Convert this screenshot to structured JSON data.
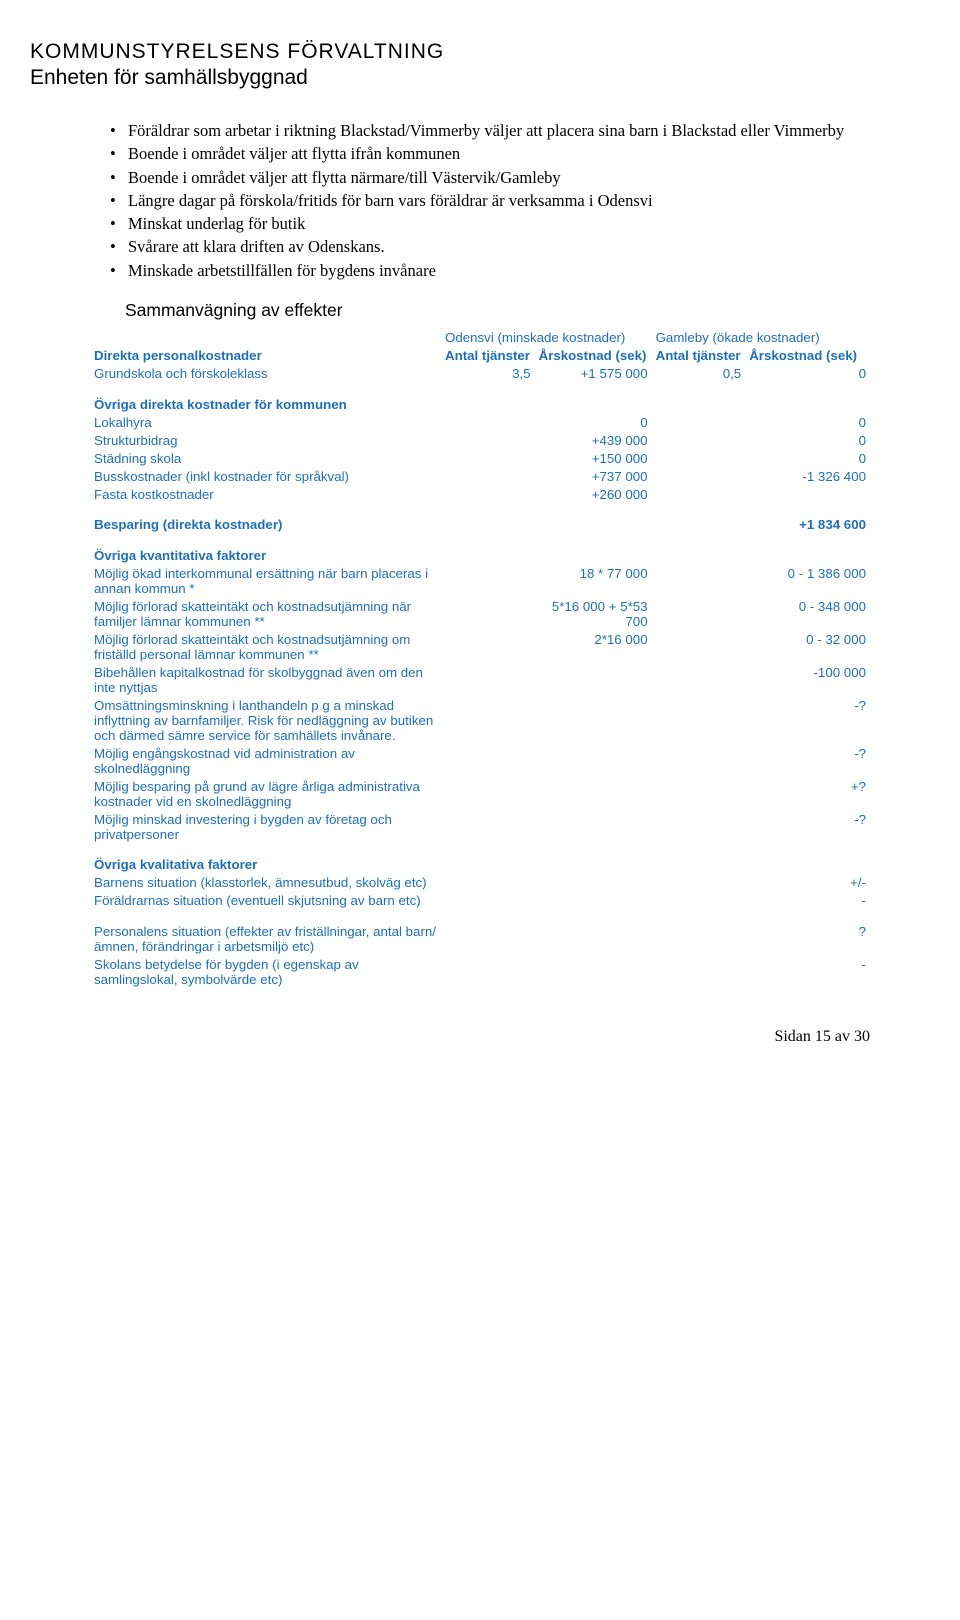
{
  "header": {
    "title": "KOMMUNSTYRELSENS FÖRVALTNING",
    "subtitle": "Enheten för samhällsbyggnad"
  },
  "bullets": [
    "Föräldrar som arbetar i riktning Blackstad/Vimmerby väljer att placera sina barn i Blackstad eller Vimmerby",
    "Boende i området väljer att flytta ifrån kommunen",
    "Boende i området väljer att flytta närmare/till Västervik/Gamleby",
    "Längre dagar på förskola/fritids för barn vars föräldrar är verksamma i Odensvi",
    "Minskat underlag för butik",
    "Svårare att klara driften av Odenskans.",
    "Minskade arbetstillfällen för bygdens invånare"
  ],
  "section_heading": "Sammanvägning av effekter",
  "table": {
    "col_headers": {
      "group_a": "Odensvi (minskade kostnader)",
      "group_b": "Gamleby (ökade kostnader)"
    },
    "sub_headers": {
      "direct_personal": "Direkta personalkostnader",
      "antal": "Antal tjänster",
      "ars": "Årskostnad (sek)"
    },
    "rows": {
      "grundskola": {
        "label": "Grundskola och förskoleklass",
        "a1": "3,5",
        "a2": "+1 575 000",
        "b1": "0,5",
        "b2": "0"
      },
      "ovriga_direkta_header": "Övriga direkta kostnader för kommunen",
      "lokalhyra": {
        "label": "Lokalhyra",
        "a2": "0",
        "b2": "0"
      },
      "strukturbidrag": {
        "label": "Strukturbidrag",
        "a2": "+439 000",
        "b2": "0"
      },
      "stadning": {
        "label": "Städning skola",
        "a2": "+150 000",
        "b2": "0"
      },
      "buss": {
        "label": "Busskostnader (inkl kostnader för språkval)",
        "a2": "+737 000",
        "b2": "-1 326 400"
      },
      "fasta": {
        "label": "Fasta kostkostnader",
        "a2": "+260 000",
        "b2": ""
      },
      "besparing": {
        "label": "Besparing (direkta kostnader)",
        "b2": "+1 834 600"
      },
      "ovriga_kvant_header": "Övriga kvantitativa faktorer",
      "interkommunal": {
        "label": "Möjlig ökad interkommunal ersättning när barn placeras i annan kommun *",
        "a2": "18 * 77 000",
        "b2": "0 - 1 386 000"
      },
      "skatteintakt1": {
        "label": "Möjlig förlorad skatteintäkt och kostnadsutjämning när familjer lämnar kommunen **",
        "a2": "5*16 000 + 5*53 700",
        "b2": "0 - 348 000"
      },
      "skatteintakt2": {
        "label": "Möjlig förlorad skatteintäkt och kostnadsutjämning om friställd personal lämnar kommunen **",
        "a2": "2*16 000",
        "b2": "0 - 32 000"
      },
      "bibehallen": {
        "label": "Bibehållen kapitalkostnad för skolbyggnad även om den inte nyttjas",
        "b2": "-100 000"
      },
      "omsattning": {
        "label": "Omsättningsminskning i lanthandeln p g a minskad inflyttning av barnfamiljer. Risk för nedläggning av butiken och därmed sämre service för samhällets invånare.",
        "b2": "-?"
      },
      "engangs": {
        "label": "Möjlig engångskostnad vid administration av skolnedläggning",
        "b2": "-?"
      },
      "besparing_admin": {
        "label": "Möjlig besparing på grund av lägre årliga administrativa kostnader vid en skolnedläggning",
        "b2": "+?"
      },
      "investering": {
        "label": "Möjlig minskad investering i bygden av företag och privatpersoner",
        "b2": "-?"
      },
      "ovriga_kval_header": "Övriga kvalitativa faktorer",
      "barnens": {
        "label": "Barnens situation (klasstorlek, ämnesutbud, skolväg etc)",
        "b2": "+/-"
      },
      "foraldrarnas": {
        "label": "Föräldrarnas situation (eventuell skjutsning av barn etc)",
        "b2": "-"
      },
      "personalens": {
        "label": "Personalens situation (effekter av friställningar, antal barn/ämnen, förändringar i arbetsmiljö etc)",
        "b2": "?"
      },
      "skolans": {
        "label": "Skolans betydelse för bygden (i egenskap av samlingslokal, symbolvärde etc)",
        "b2": "-"
      }
    }
  },
  "footer": "Sidan 15 av 30",
  "colors": {
    "text": "#000000",
    "table_text": "#1f6fb5"
  }
}
